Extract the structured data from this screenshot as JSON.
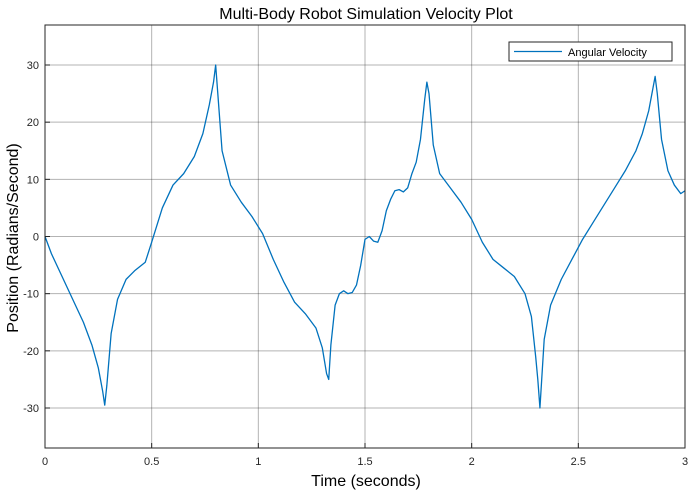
{
  "colors": {
    "series": "#0072BD",
    "grid": "#262626",
    "axis": "#262626",
    "background": "#ffffff"
  },
  "chart_data": {
    "type": "line",
    "title": "Multi-Body Robot Simulation Velocity Plot",
    "xlabel": "Time (seconds)",
    "ylabel": "Position (Radians/Second)",
    "xlim": [
      0,
      3
    ],
    "ylim": [
      -37,
      37
    ],
    "xticks": [
      0,
      0.5,
      1,
      1.5,
      2,
      2.5,
      3
    ],
    "xtick_labels": [
      "0",
      "0.5",
      "1",
      "1.5",
      "2",
      "2.5",
      "3"
    ],
    "yticks": [
      -30,
      -20,
      -10,
      0,
      10,
      20,
      30
    ],
    "ytick_labels": [
      "-30",
      "-20",
      "-10",
      "0",
      "10",
      "20",
      "30"
    ],
    "grid": true,
    "legend_position": "top-right",
    "series": [
      {
        "name": "Angular Velocity",
        "color": "#0072BD",
        "x": [
          0,
          0.03,
          0.08,
          0.13,
          0.18,
          0.22,
          0.25,
          0.27,
          0.28,
          0.29,
          0.31,
          0.34,
          0.38,
          0.42,
          0.47,
          0.5,
          0.55,
          0.6,
          0.65,
          0.7,
          0.74,
          0.77,
          0.79,
          0.8,
          0.81,
          0.83,
          0.87,
          0.92,
          0.97,
          1.02,
          1.07,
          1.12,
          1.17,
          1.22,
          1.27,
          1.3,
          1.32,
          1.33,
          1.34,
          1.36,
          1.38,
          1.4,
          1.42,
          1.44,
          1.46,
          1.48,
          1.5,
          1.52,
          1.54,
          1.56,
          1.58,
          1.6,
          1.62,
          1.64,
          1.66,
          1.68,
          1.7,
          1.72,
          1.74,
          1.76,
          1.78,
          1.79,
          1.8,
          1.82,
          1.85,
          1.9,
          1.95,
          2.0,
          2.05,
          2.1,
          2.15,
          2.2,
          2.25,
          2.28,
          2.3,
          2.31,
          2.32,
          2.34,
          2.37,
          2.42,
          2.47,
          2.52,
          2.57,
          2.62,
          2.67,
          2.72,
          2.77,
          2.8,
          2.83,
          2.85,
          2.86,
          2.87,
          2.89,
          2.92,
          2.95,
          2.98,
          3.0
        ],
        "values": [
          0,
          -3,
          -7,
          -11,
          -15,
          -19,
          -23,
          -27,
          -29.5,
          -26,
          -17,
          -11,
          -7.5,
          -6,
          -4.5,
          -1,
          5,
          9,
          11,
          14,
          18,
          23,
          27,
          30,
          25,
          15,
          9,
          6,
          3.5,
          0.5,
          -4,
          -8,
          -11.5,
          -13.5,
          -16,
          -19.5,
          -24,
          -25,
          -19,
          -12,
          -10,
          -9.5,
          -10,
          -9.8,
          -8.5,
          -5,
          -0.5,
          0,
          -0.8,
          -1,
          1,
          4.5,
          6.5,
          8,
          8.2,
          7.8,
          8.5,
          11,
          13,
          17,
          24,
          27,
          25,
          16,
          11,
          8.5,
          6,
          3,
          -1,
          -4,
          -5.5,
          -7,
          -10,
          -14,
          -21,
          -25,
          -30,
          -18,
          -12,
          -7.5,
          -4,
          -0.5,
          2.5,
          5.5,
          8.5,
          11.5,
          15,
          18,
          22,
          26,
          28,
          25,
          17,
          11.5,
          9,
          7.5,
          8
        ]
      }
    ]
  }
}
